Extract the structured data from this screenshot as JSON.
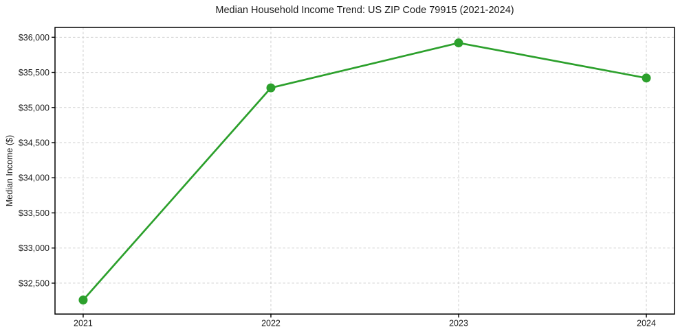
{
  "figure": {
    "background": "#ffffff"
  },
  "chart_data": {
    "type": "line",
    "title": "Median Household Income Trend: US ZIP Code 79915 (2021-2024)",
    "xlabel": "",
    "ylabel": "Median Income ($)",
    "x": [
      2021,
      2022,
      2023,
      2024
    ],
    "series": [
      {
        "name": "Median Household Income",
        "values": [
          32260,
          35280,
          35920,
          35420
        ]
      }
    ],
    "xtick_labels": [
      "2021",
      "2022",
      "2023",
      "2024"
    ],
    "ytick_values": [
      32500,
      33000,
      33500,
      34000,
      34500,
      35000,
      35500,
      36000
    ],
    "ytick_labels": [
      "$32,500",
      "$33,000",
      "$33,500",
      "$34,000",
      "$34,500",
      "$35,000",
      "$35,500",
      "$36,000"
    ],
    "xlim": [
      2020.85,
      2024.15
    ],
    "ylim": [
      32060,
      36140
    ],
    "grid": true,
    "grid_style": "dashed",
    "legend": false,
    "colors": {
      "line": "#2ca02c",
      "marker": "#2ca02c",
      "grid": "#cfcfcf",
      "spine": "#000000",
      "tick": "#000000",
      "text": "#1a1a1a",
      "background": "#ffffff"
    }
  }
}
